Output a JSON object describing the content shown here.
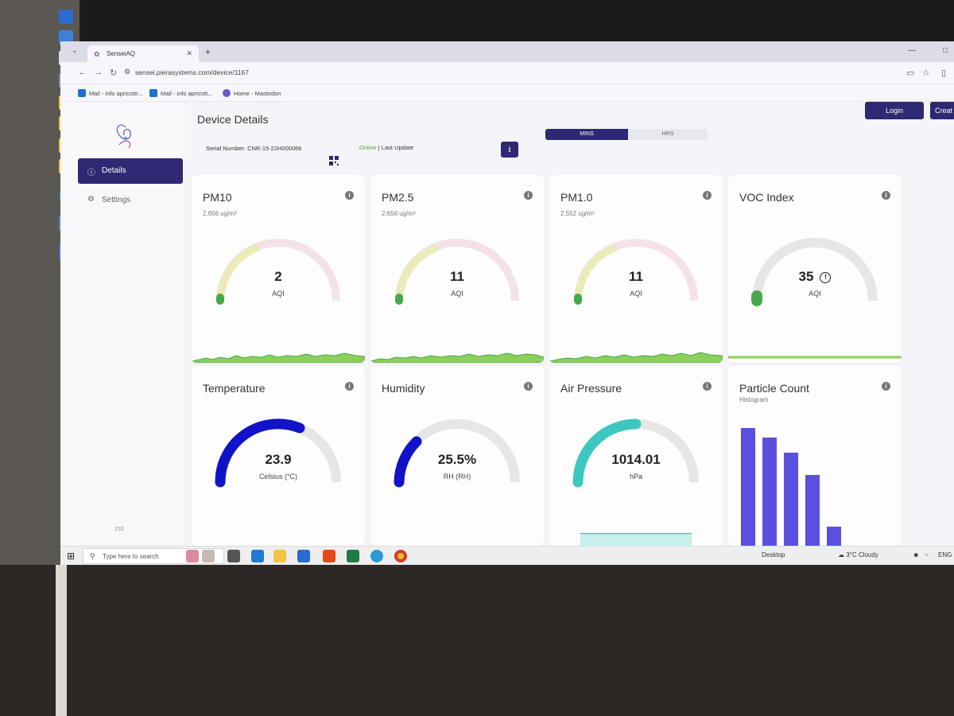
{
  "browser": {
    "tab_title": "SenseiAQ",
    "url": "sensei.pierasystems.com/device/1167",
    "bookmarks": [
      "Mail - info apricottr...",
      "Mail - info apricott...",
      "Home - Mastodon"
    ]
  },
  "sidebar": {
    "items": [
      {
        "label": "Details",
        "icon": "info-icon",
        "active": true
      },
      {
        "label": "Settings",
        "icon": "gear-icon",
        "active": false
      }
    ],
    "version": "210"
  },
  "header": {
    "title": "Device Details",
    "login_label": "Login",
    "create_label": "Creat"
  },
  "device": {
    "serial": "Serial Number: CNR-15-22H000066",
    "status_online": "Online",
    "status_rest": " | Last Update"
  },
  "toggle": {
    "mins_label": "MINS",
    "hrs_label": "HRS",
    "selected": "MINS"
  },
  "air_cards": [
    {
      "title": "PM10",
      "concentration": "2.656 ug/m³",
      "value": "2",
      "unit": "AQI",
      "level": 0.04,
      "colors": [
        "#49a84a"
      ]
    },
    {
      "title": "PM2.5",
      "concentration": "2.656 ug/m³",
      "value": "11",
      "unit": "AQI",
      "level": 0.04,
      "colors": [
        "#49a84a"
      ]
    },
    {
      "title": "PM1.0",
      "concentration": "2.552 ug/m³",
      "value": "11",
      "unit": "AQI",
      "level": 0.04,
      "colors": [
        "#49a84a"
      ]
    },
    {
      "title": "VOC Index",
      "concentration": "",
      "value": "35",
      "unit": "AQI",
      "level": 0.05,
      "colors": [
        "#49a84a"
      ]
    }
  ],
  "env_cards": [
    {
      "title": "Temperature",
      "value": "23.9",
      "unit": "Celsius (°C)",
      "level": 0.68,
      "color": "#1212c8"
    },
    {
      "title": "Humidity",
      "value": "25.5%",
      "unit": "RH (RH)",
      "level": 0.3,
      "color": "#1212c8"
    },
    {
      "title": "Air Pressure",
      "value": "1014.01",
      "unit": "hPa",
      "level": 0.5,
      "color": "#3cc8c0"
    }
  ],
  "particle_card": {
    "title": "Particle Count",
    "subtitle": "Histogram",
    "bars": [
      1.0,
      0.92,
      0.79,
      0.6,
      0.16
    ],
    "color": "#5b4fe0"
  },
  "taskbar": {
    "search_placeholder": "Type here to search",
    "desktop_label": "Desktop",
    "weather": "3°C  Cloudy",
    "language": "ENG"
  },
  "colors": {
    "accent": "#2f2872",
    "online": "#49a84a",
    "gauge_track": "#e6e6e6"
  }
}
